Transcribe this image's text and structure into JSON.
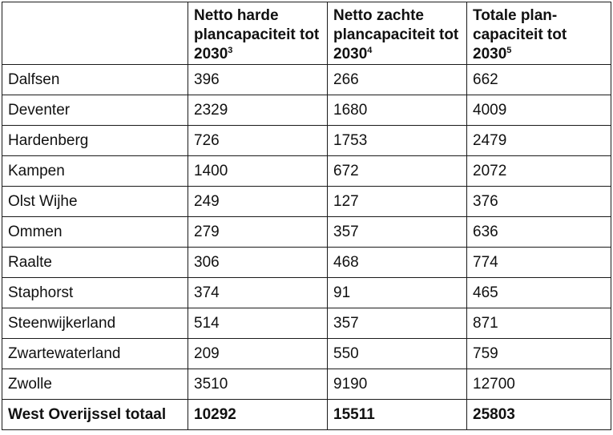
{
  "table": {
    "headers": [
      {
        "text": "",
        "sup": ""
      },
      {
        "text": "Netto harde plancapaciteit tot 2030",
        "sup": "3"
      },
      {
        "text": "Netto zachte plancapaciteit tot 2030",
        "sup": "4"
      },
      {
        "text": "Totale plan-capaciteit tot 2030",
        "sup": "5"
      }
    ],
    "rows": [
      [
        "Dalfsen",
        "396",
        "266",
        "662"
      ],
      [
        "Deventer",
        "2329",
        "1680",
        "4009"
      ],
      [
        "Hardenberg",
        "726",
        "1753",
        "2479"
      ],
      [
        "Kampen",
        "1400",
        "672",
        "2072"
      ],
      [
        "Olst Wijhe",
        "249",
        "127",
        "376"
      ],
      [
        "Ommen",
        "279",
        "357",
        "636"
      ],
      [
        "Raalte",
        "306",
        "468",
        "774"
      ],
      [
        "Staphorst",
        "374",
        "91",
        "465"
      ],
      [
        "Steenwijkerland",
        "514",
        "357",
        "871"
      ],
      [
        "Zwartewaterland",
        "209",
        "550",
        "759"
      ],
      [
        "Zwolle",
        "3510",
        "9190",
        "12700"
      ]
    ],
    "total": [
      "West Overijssel totaal",
      "10292",
      "15511",
      "25803"
    ]
  }
}
